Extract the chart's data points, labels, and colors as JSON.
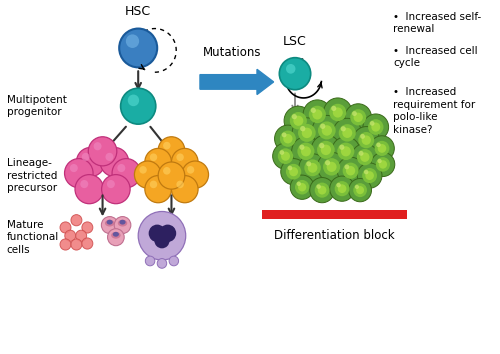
{
  "bg_color": "#ffffff",
  "hsc_color": "#3a7fc1",
  "hsc_highlight": "#6aabdf",
  "hsc_ec": "#1a5a9a",
  "hsc_label": "HSC",
  "multipotent_color": "#1aada4",
  "multipotent_highlight": "#4dd4cb",
  "multipotent_ec": "#0d8a80",
  "lineage_pink_color": "#e85fa0",
  "lineage_pink_ec": "#c0307a",
  "lineage_pink_highlight": "#f088c0",
  "lineage_orange_color": "#f5a623",
  "lineage_orange_ec": "#c07a10",
  "lineage_orange_highlight": "#ffd060",
  "lsc_color": "#1aada4",
  "lsc_highlight": "#4dd4cb",
  "lsc_ec": "#0d8a80",
  "lsc_label": "LSC",
  "leukemic_green_outer": "#5a9e3a",
  "leukemic_green_mid": "#7abf3a",
  "leukemic_green_inner": "#9dd63f",
  "leukemic_highlight": "#c8e66e",
  "leukemic_ec": "#3a6a1a",
  "arrow_color": "#2e86c1",
  "black_arrow": "#333333",
  "gray_arrow": "#888888",
  "text_mutations": "Mutations",
  "text_multipotent": "Multipotent\nprogenitor",
  "text_lineage": "Lineage-\nrestricted\nprecursor",
  "text_mature": "Mature\nfunctional\ncells",
  "text_diff_block": "Differentiation block",
  "diff_bar_color": "#e02020",
  "bullet_points": [
    "Increased self-\nrenewal",
    "Increased cell\ncycle",
    "Increased\nrequirement for\npolo-like\nkinase?"
  ],
  "rbc_color": "#f08080",
  "rbc_ec": "#d05050",
  "platelet_color": "#e8a0b8",
  "platelet_inner": "#c87090",
  "platelet_nucleus": "#5050a0",
  "wbc_color": "#c0a8d8",
  "wbc_ec": "#9070b8",
  "wbc_nucleus": "#2d2060"
}
